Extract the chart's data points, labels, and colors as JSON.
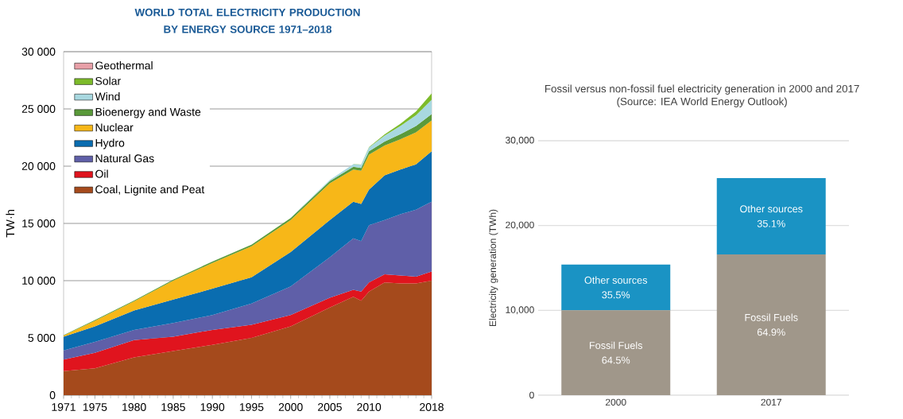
{
  "chart_data": [
    {
      "type": "area",
      "title": "WORLD TOTAL ELECTRICITY PRODUCTION BY ENERGY SOURCE 1971–2018",
      "ylabel": "TW·h",
      "stacked": true,
      "grid": "y",
      "legend": "top left",
      "x": [
        1971,
        1975,
        1980,
        1985,
        1990,
        1995,
        2000,
        2005,
        2008,
        2009,
        2010,
        2012,
        2014,
        2016,
        2018
      ],
      "xlim": [
        1971,
        2018
      ],
      "xticks": [
        1971,
        1975,
        1980,
        1985,
        1990,
        1995,
        2000,
        2005,
        2010,
        2018
      ],
      "ylim": [
        0,
        30000
      ],
      "yticks": [
        0,
        {
          "value": 5000,
          "label": "5 000"
        },
        {
          "value": 10000,
          "label": "10 000"
        },
        {
          "value": 15000,
          "label": "15 000"
        },
        {
          "value": 20000,
          "label": "20 000"
        },
        {
          "value": 25000,
          "label": "25 000"
        },
        {
          "value": 30000,
          "label": "30 000"
        }
      ],
      "series": [
        {
          "name": "Coal, Lignite and Peat",
          "color": "#a54a1c",
          "values": [
            2100,
            2350,
            3300,
            3850,
            4400,
            5000,
            6000,
            7650,
            8600,
            8250,
            9050,
            9850,
            9750,
            9750,
            10000
          ]
        },
        {
          "name": "Oil",
          "color": "#e0141e",
          "values": [
            1000,
            1350,
            1500,
            1250,
            1300,
            1150,
            1000,
            850,
            600,
            800,
            800,
            700,
            700,
            600,
            800
          ]
        },
        {
          "name": "Natural Gas",
          "color": "#5f5fa8",
          "values": [
            800,
            950,
            900,
            1200,
            1300,
            1850,
            2500,
            3550,
            4500,
            4400,
            5000,
            4750,
            5350,
            5850,
            6100
          ]
        },
        {
          "name": "Hydro",
          "color": "#0a6db0",
          "values": [
            1200,
            1350,
            1700,
            2050,
            2300,
            2300,
            3000,
            3250,
            3200,
            3250,
            3100,
            3900,
            3900,
            3950,
            4400
          ]
        },
        {
          "name": "Nuclear",
          "color": "#f7b718",
          "values": [
            100,
            500,
            800,
            1650,
            2250,
            2700,
            2800,
            3200,
            2800,
            2900,
            3050,
            2600,
            2650,
            2800,
            2700
          ]
        },
        {
          "name": "Bioenergy and Waste",
          "color": "#5a9a3a",
          "values": [
            50,
            60,
            70,
            80,
            120,
            150,
            170,
            200,
            250,
            250,
            300,
            350,
            450,
            550,
            550
          ]
        },
        {
          "name": "Wind",
          "color": "#a8d8e0",
          "values": [
            null,
            null,
            null,
            null,
            null,
            null,
            30,
            100,
            220,
            270,
            340,
            520,
            700,
            950,
            1250
          ]
        },
        {
          "name": "Solar",
          "color": "#7dbb2a",
          "values": [
            null,
            null,
            null,
            null,
            null,
            null,
            null,
            null,
            20,
            20,
            30,
            100,
            190,
            330,
            550
          ]
        },
        {
          "name": "Geothermal",
          "color": "#e8a0a8",
          "values": [
            null,
            null,
            null,
            null,
            null,
            null,
            null,
            null,
            null,
            null,
            null,
            null,
            null,
            null,
            null
          ]
        }
      ]
    },
    {
      "type": "bar",
      "title": "Fossil versus non-fossil fuel electricity generation in 2000 and 2017",
      "subtitle": "(Source: IEA World Energy Outlook)",
      "ylabel": "Electricity generation (TWh)",
      "stacked": true,
      "grid": "y",
      "categories": [
        "2000",
        "2017"
      ],
      "ylim": [
        0,
        30000
      ],
      "yticks": [
        0,
        {
          "value": 10000,
          "label": "10,000"
        },
        {
          "value": 20000,
          "label": "20,000"
        },
        {
          "value": 30000,
          "label": "30,000"
        }
      ],
      "series": [
        {
          "name": "Fossil Fuels",
          "color": "#a0978a",
          "values": [
            10000,
            16600
          ]
        },
        {
          "name": "Other sources",
          "color": "#1a93c4",
          "values": [
            5400,
            9000
          ]
        }
      ],
      "annotations": [
        "64.5%",
        "64.9%",
        "35.5%",
        "35.1%"
      ]
    }
  ]
}
